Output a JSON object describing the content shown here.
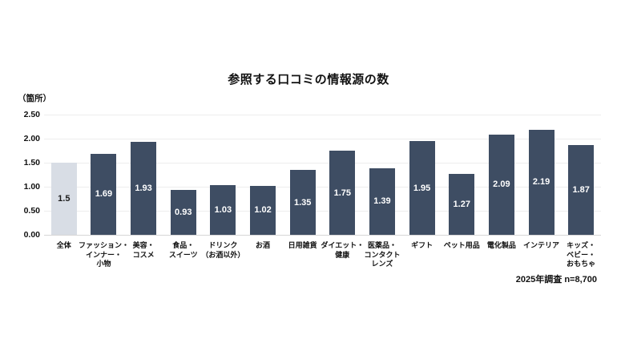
{
  "title": "参照する口コミの情報源の数",
  "footer": "2025年調査 n=8,700",
  "colors": {
    "bar_default": "#3e4d63",
    "bar_highlight": "#d8dde5",
    "value_text_on_dark": "#ffffff",
    "value_text_on_light": "#1a1a1a",
    "grid": "#ededed",
    "baseline": "#d6d6d6",
    "text": "#111111",
    "background": "#ffffff"
  },
  "chart_data": {
    "type": "bar",
    "title": "参照する口コミの情報源の数",
    "ylabel": "（箇所）",
    "xlabel": "",
    "ylim": [
      0,
      2.5
    ],
    "grid": true,
    "legend": "none",
    "yticks": [
      "0.00",
      "0.50",
      "1.00",
      "1.50",
      "2.00",
      "2.50"
    ],
    "categories": [
      "全体",
      "ファッション・\nインナー・\n小物",
      "美容・\nコスメ",
      "食品・\nスイーツ",
      "ドリンク\n（お酒以外）",
      "お酒",
      "日用雑貨",
      "ダイエット・\n健康",
      "医薬品・\nコンタクト\nレンズ",
      "ギフト",
      "ペット用品",
      "電化製品",
      "インテリア",
      "キッズ・\nベビー・\nおもちゃ"
    ],
    "values": [
      1.5,
      1.69,
      1.93,
      0.93,
      1.03,
      1.02,
      1.35,
      1.75,
      1.39,
      1.95,
      1.27,
      2.09,
      2.19,
      1.87
    ],
    "value_labels": [
      "1.5",
      "1.69",
      "1.93",
      "0.93",
      "1.03",
      "1.02",
      "1.35",
      "1.75",
      "1.39",
      "1.95",
      "1.27",
      "2.09",
      "2.19",
      "1.87"
    ],
    "highlight_index": 0,
    "note": "2025年調査 n=8,700"
  }
}
